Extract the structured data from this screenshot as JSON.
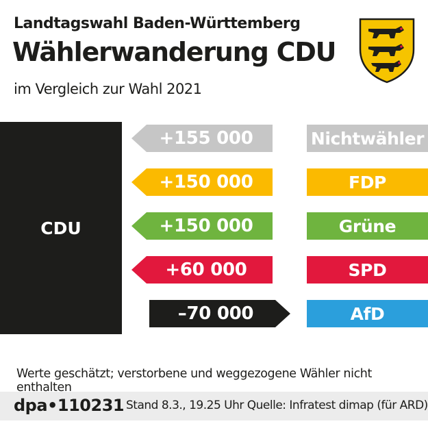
{
  "header": {
    "subtitle": "Landtagswahl Baden-Württemberg",
    "title": "Wählerwanderung CDU",
    "description": "im Vergleich zur Wahl 2021"
  },
  "center_party": "CDU",
  "chart_data": {
    "type": "diagram",
    "center": "CDU",
    "flows": [
      {
        "party": "Nichtwähler",
        "value": 155000,
        "label": "+155 000",
        "direction": "in",
        "color": "#c6c6c6"
      },
      {
        "party": "FDP",
        "value": 150000,
        "label": "+150 000",
        "direction": "in",
        "color": "#fbba00"
      },
      {
        "party": "Grüne",
        "value": 150000,
        "label": "+150 000",
        "direction": "in",
        "color": "#6fb43f"
      },
      {
        "party": "SPD",
        "value": 60000,
        "label": "+60 000",
        "direction": "in",
        "color": "#e2183d"
      },
      {
        "party": "AfD",
        "value": -70000,
        "label": "–70 000",
        "direction": "out",
        "color": "#1d1d1b",
        "party_color": "#2b9fdc"
      }
    ]
  },
  "footnote": "Werte geschätzt; verstorbene und weggezogene Wähler nicht enthalten",
  "footer": {
    "brand": "dpa•110231",
    "meta": "Stand 8.3., 19.25 Uhr  Quelle: Infratest dimap (für ARD)"
  },
  "icons": {
    "coat_of_arms": "baden-wuerttemberg-coat-of-arms-icon"
  }
}
